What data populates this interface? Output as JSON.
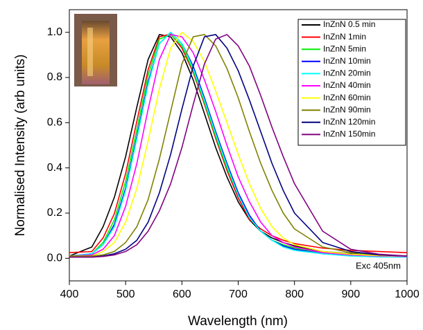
{
  "chart_data": {
    "type": "line",
    "xlabel": "Wavelength (nm)",
    "ylabel": "Normalised Intensity (arb units)",
    "annotation": "Exc 405nm",
    "xlim": [
      400,
      1000
    ],
    "xticks": [
      400,
      500,
      600,
      700,
      800,
      900,
      1000
    ],
    "ylim": [
      -0.1,
      1.1
    ],
    "yticks": [
      {
        "value": 0,
        "label": "0.0"
      },
      0.2,
      0.4,
      0.6,
      0.8,
      {
        "value": 1,
        "label": "1.0"
      }
    ],
    "legend": "upper right",
    "x": [
      400,
      440,
      460,
      480,
      500,
      520,
      540,
      560,
      580,
      600,
      620,
      640,
      660,
      680,
      700,
      720,
      740,
      760,
      780,
      800,
      850,
      900,
      950,
      1000
    ],
    "series": [
      {
        "name": "InZnN 0.5 min",
        "color": "#000000",
        "values": [
          0.01,
          0.05,
          0.14,
          0.27,
          0.45,
          0.67,
          0.88,
          0.99,
          0.98,
          0.91,
          0.79,
          0.64,
          0.49,
          0.36,
          0.25,
          0.17,
          0.12,
          0.09,
          0.07,
          0.055,
          0.03,
          0.02,
          0.012,
          0.01
        ]
      },
      {
        "name": "InZnN 1min",
        "color": "#ff0000",
        "values": [
          0.025,
          0.03,
          0.09,
          0.198,
          0.375,
          0.607,
          0.835,
          0.98,
          0.992,
          0.93,
          0.823,
          0.682,
          0.531,
          0.389,
          0.267,
          0.172,
          0.13,
          0.1,
          0.08,
          0.065,
          0.045,
          0.035,
          0.03,
          0.025
        ]
      },
      {
        "name": "InZnN 5min",
        "color": "#00ee00",
        "values": [
          0.01,
          0.02,
          0.07,
          0.17,
          0.34,
          0.57,
          0.81,
          0.97,
          0.99,
          0.94,
          0.83,
          0.69,
          0.54,
          0.4,
          0.28,
          0.18,
          0.12,
          0.08,
          0.06,
          0.045,
          0.025,
          0.015,
          0.01,
          0.008
        ]
      },
      {
        "name": "InZnN 10min",
        "color": "#0000ff",
        "values": [
          0.01,
          0.02,
          0.06,
          0.15,
          0.31,
          0.54,
          0.78,
          0.95,
          1.0,
          0.95,
          0.85,
          0.71,
          0.56,
          0.42,
          0.29,
          0.19,
          0.12,
          0.08,
          0.055,
          0.04,
          0.02,
          0.012,
          0.008,
          0.006
        ]
      },
      {
        "name": "InZnN 20min",
        "color": "#00ffff",
        "values": [
          0.01,
          0.02,
          0.06,
          0.14,
          0.3,
          0.53,
          0.77,
          0.95,
          1.0,
          0.95,
          0.84,
          0.7,
          0.55,
          0.41,
          0.28,
          0.18,
          0.12,
          0.08,
          0.05,
          0.035,
          0.02,
          0.01,
          0.006,
          0.005
        ]
      },
      {
        "name": "InZnN 40min",
        "color": "#ff00ff",
        "values": [
          0.01,
          0.015,
          0.04,
          0.1,
          0.23,
          0.42,
          0.66,
          0.88,
          0.99,
          0.98,
          0.91,
          0.79,
          0.65,
          0.5,
          0.36,
          0.25,
          0.16,
          0.1,
          0.07,
          0.05,
          0.025,
          0.015,
          0.01,
          0.008
        ]
      },
      {
        "name": "InZnN 60min",
        "color": "#ffff00",
        "values": [
          0.01,
          0.01,
          0.03,
          0.07,
          0.16,
          0.31,
          0.52,
          0.75,
          0.93,
          1.0,
          0.96,
          0.87,
          0.74,
          0.6,
          0.46,
          0.33,
          0.22,
          0.14,
          0.09,
          0.06,
          0.03,
          0.018,
          0.012,
          0.01
        ]
      },
      {
        "name": "InZnN 90min",
        "color": "#808000",
        "values": [
          0.01,
          0.01,
          0.015,
          0.03,
          0.07,
          0.14,
          0.26,
          0.44,
          0.65,
          0.86,
          0.98,
          0.99,
          0.94,
          0.84,
          0.71,
          0.56,
          0.42,
          0.3,
          0.2,
          0.13,
          0.05,
          0.025,
          0.015,
          0.01
        ]
      },
      {
        "name": "InZnN 120min",
        "color": "#000080",
        "values": [
          0.005,
          0.005,
          0.01,
          0.02,
          0.04,
          0.08,
          0.16,
          0.29,
          0.46,
          0.66,
          0.85,
          0.98,
          0.99,
          0.93,
          0.83,
          0.7,
          0.56,
          0.42,
          0.3,
          0.2,
          0.07,
          0.03,
          0.015,
          0.01
        ]
      },
      {
        "name": "InZnN 150min",
        "color": "#800080",
        "values": [
          0.005,
          0.005,
          0.008,
          0.015,
          0.03,
          0.06,
          0.12,
          0.21,
          0.33,
          0.49,
          0.68,
          0.86,
          0.97,
          0.99,
          0.94,
          0.85,
          0.72,
          0.58,
          0.45,
          0.33,
          0.12,
          0.04,
          0.018,
          0.01
        ]
      }
    ]
  }
}
